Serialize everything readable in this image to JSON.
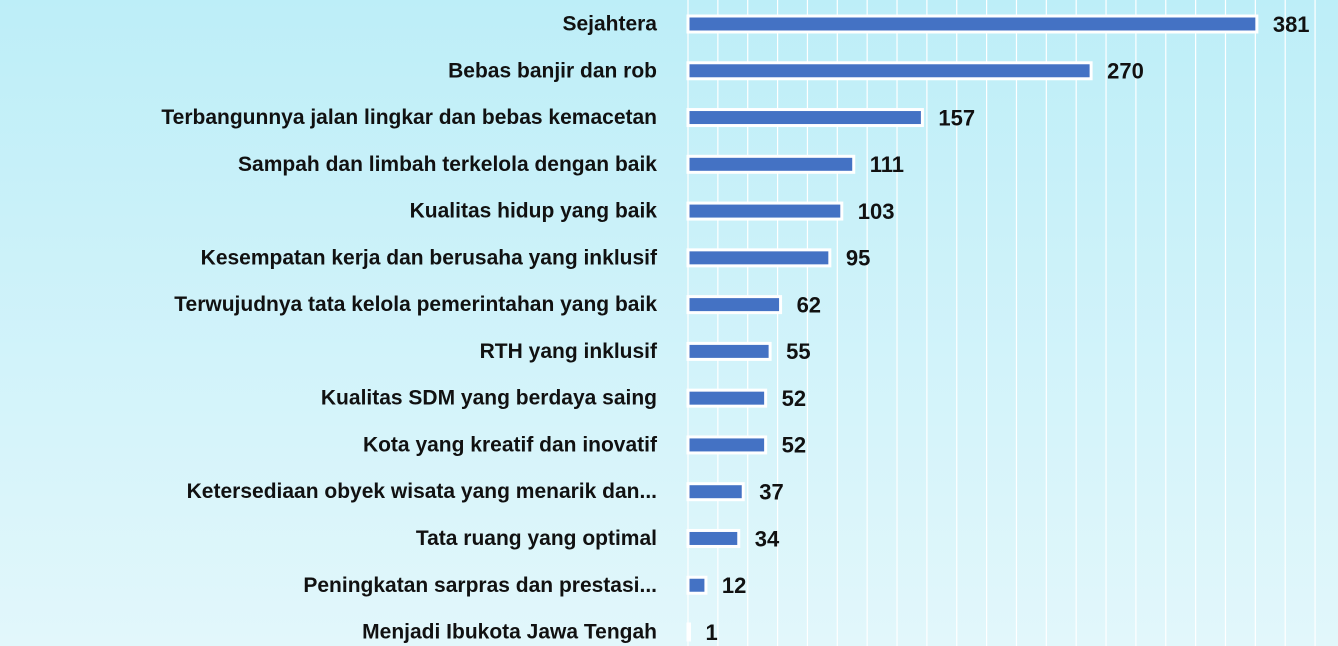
{
  "chart_data": {
    "type": "bar",
    "orientation": "horizontal",
    "categories": [
      "Sejahtera",
      "Bebas banjir dan rob",
      "Terbangunnya jalan lingkar dan bebas kemacetan",
      "Sampah dan limbah terkelola dengan baik",
      "Kualitas hidup yang baik",
      "Kesempatan kerja dan berusaha yang inklusif",
      "Terwujudnya tata kelola pemerintahan yang baik",
      "RTH yang inklusif",
      "Kualitas SDM yang berdaya saing",
      "Kota yang kreatif dan inovatif",
      "Ketersediaan obyek wisata yang menarik dan...",
      "Tata ruang yang optimal",
      "Peningkatan sarpras dan prestasi...",
      "Menjadi Ibukota Jawa Tengah"
    ],
    "values": [
      381,
      270,
      157,
      111,
      103,
      95,
      62,
      55,
      52,
      52,
      37,
      34,
      12,
      1
    ],
    "color": "#4472c4",
    "xlim": [
      0,
      430
    ],
    "xticks": [
      0,
      20,
      40,
      60,
      80,
      100,
      120,
      140,
      160,
      180,
      200,
      220,
      240,
      260,
      280,
      300,
      320,
      340,
      360,
      380,
      400,
      420
    ],
    "grid": true
  }
}
